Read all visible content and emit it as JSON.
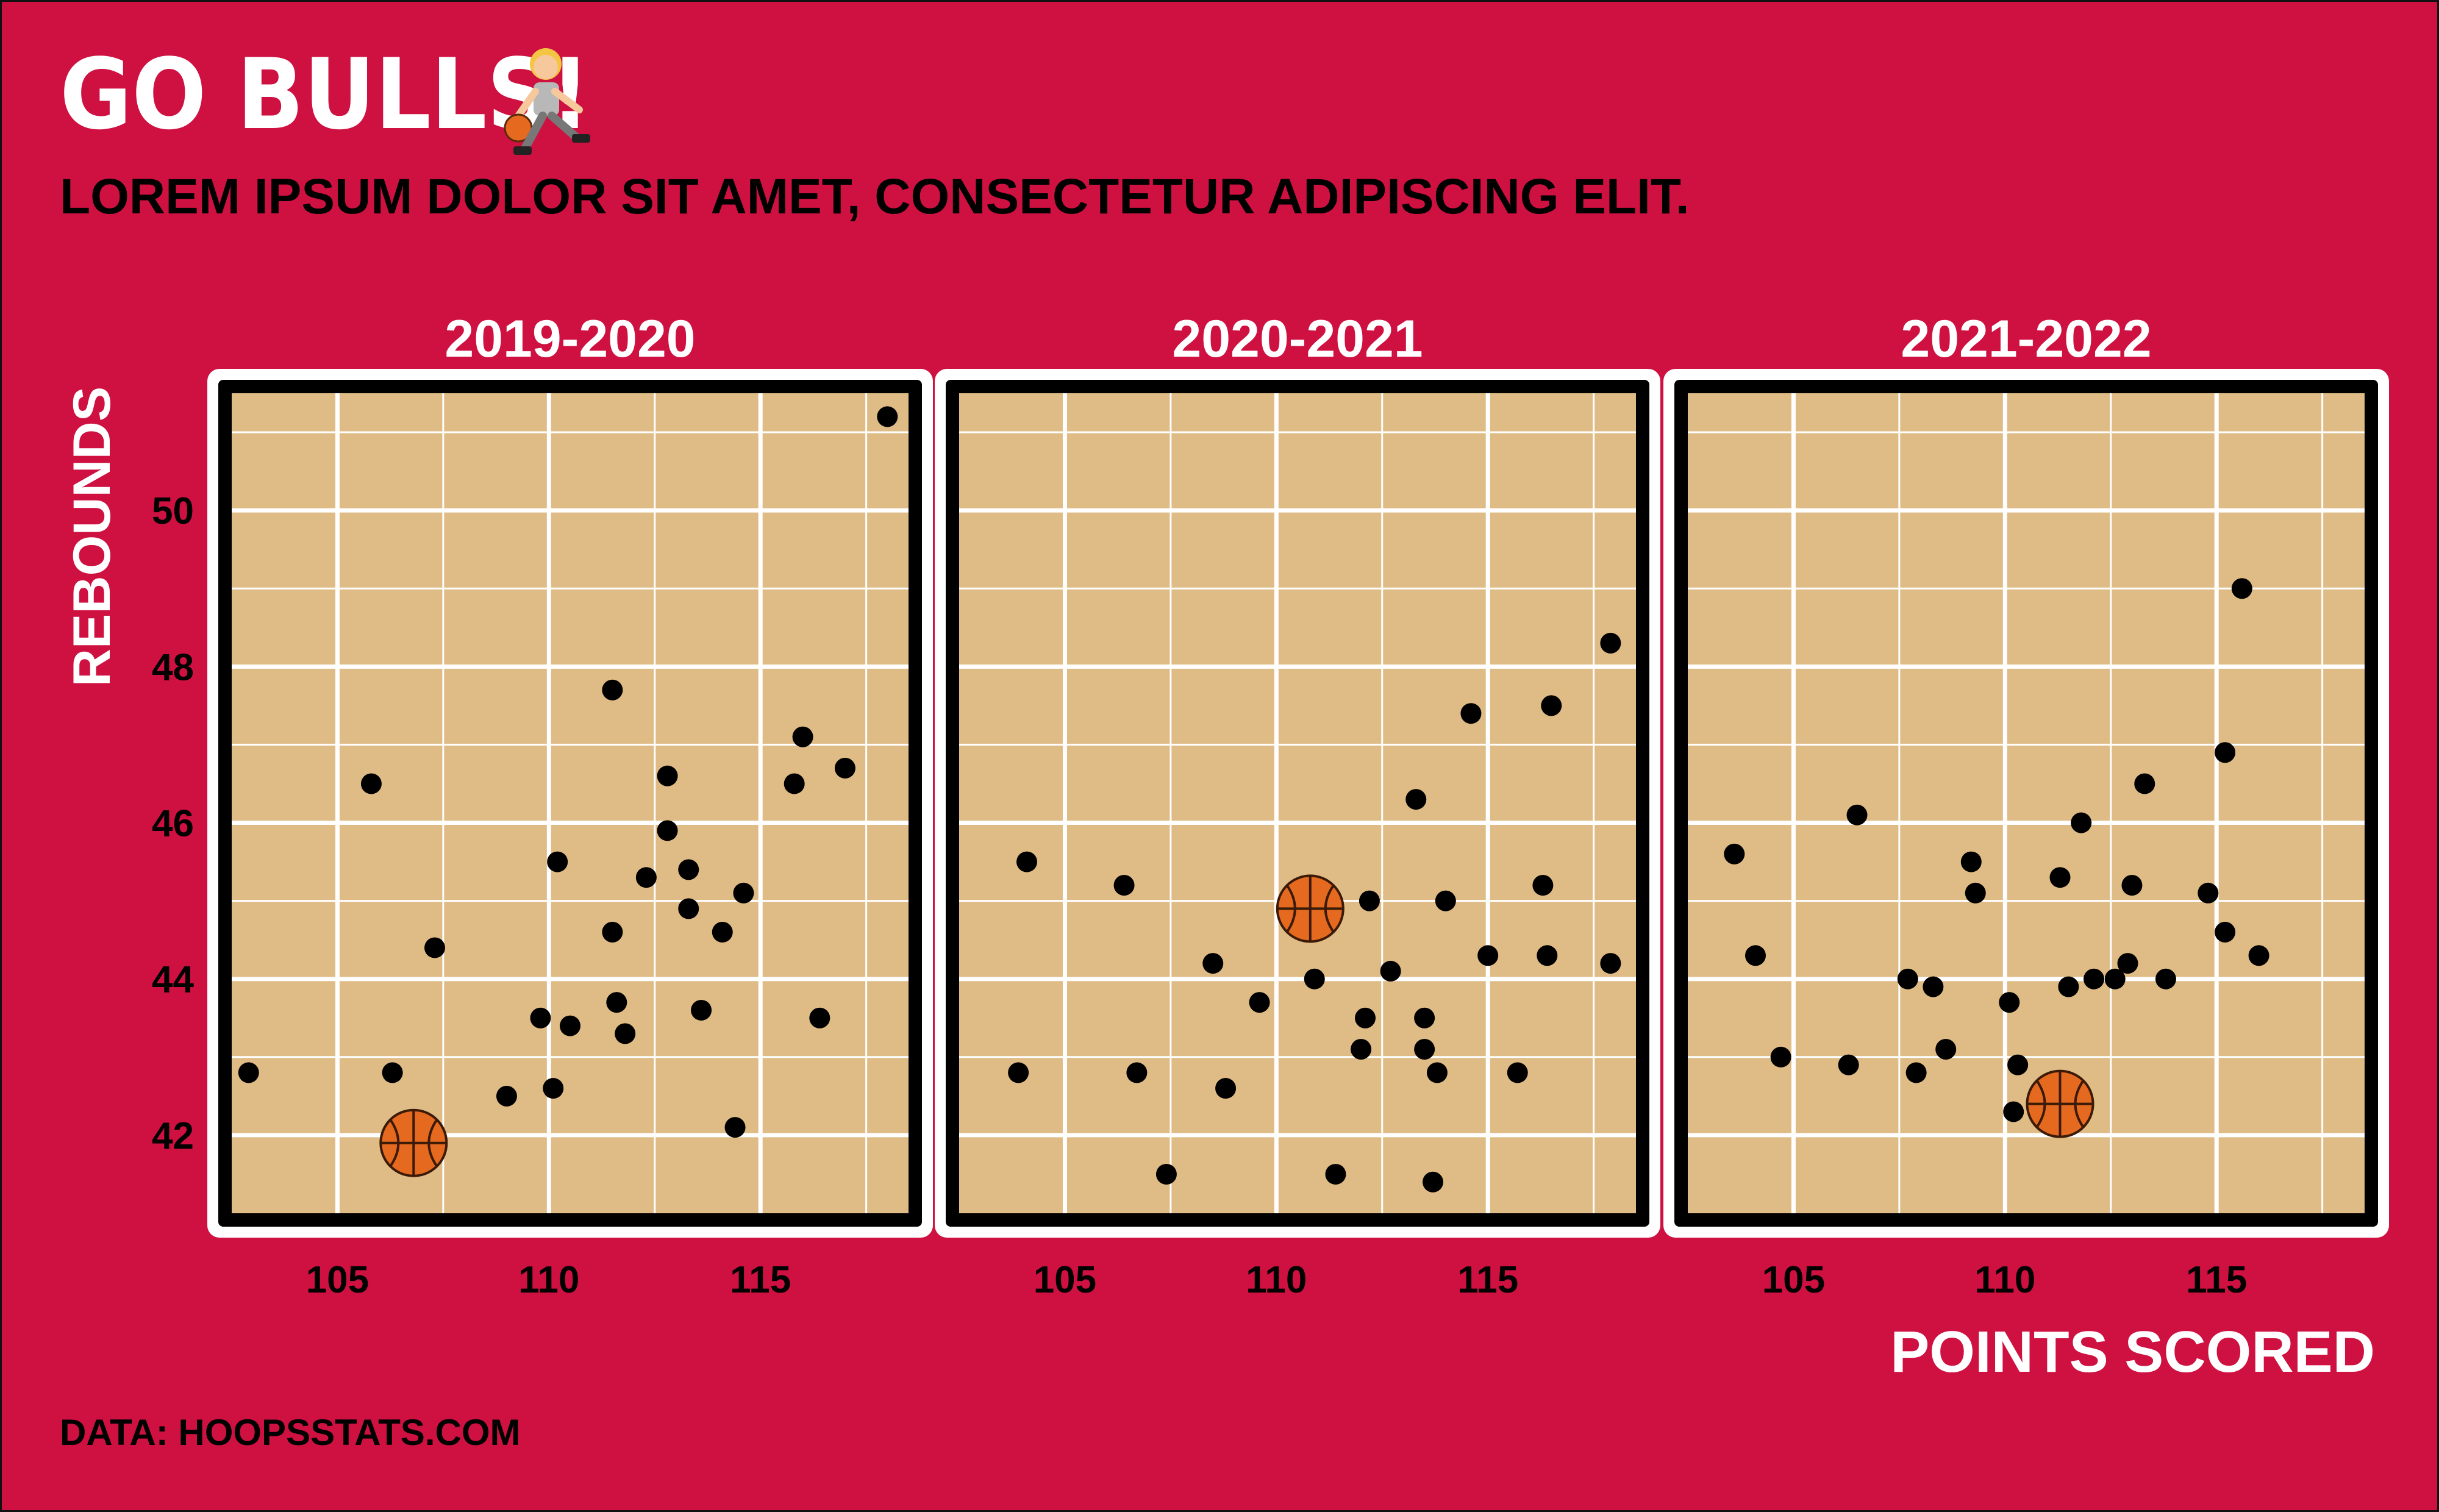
{
  "title": "GO BULLS!",
  "title_icon": "basketball-player-icon",
  "subtitle": "LOREM IPSUM DOLOR SIT AMET, CONSECTETUR ADIPISCING ELIT.",
  "caption": "DATA: HOOPSSTATS.COM",
  "colors": {
    "background": "#ce1141",
    "panel": "#dfbb85",
    "panel_border_outer": "#ffffff",
    "panel_border_inner": "#000000",
    "grid": "#ffffff",
    "point": "#000000",
    "ball": "#e56a1f"
  },
  "chart_data": {
    "type": "scatter",
    "facet_by": "season",
    "xlabel": "POINTS SCORED",
    "ylabel": "REBOUNDS",
    "xlim": [
      102.5,
      118.5
    ],
    "ylim": [
      41.0,
      51.5
    ],
    "x_ticks": [
      105,
      110,
      115
    ],
    "y_ticks": [
      42,
      44,
      46,
      48,
      50
    ],
    "grid": true,
    "panels": [
      {
        "season": "2019-2020",
        "points": [
          {
            "x": 102.9,
            "y": 42.8
          },
          {
            "x": 105.8,
            "y": 46.5
          },
          {
            "x": 106.3,
            "y": 42.8
          },
          {
            "x": 107.2,
            "y": 41.7
          },
          {
            "x": 107.3,
            "y": 44.4
          },
          {
            "x": 109.0,
            "y": 42.5
          },
          {
            "x": 109.8,
            "y": 43.5
          },
          {
            "x": 110.1,
            "y": 42.6
          },
          {
            "x": 110.2,
            "y": 45.5
          },
          {
            "x": 110.5,
            "y": 43.4
          },
          {
            "x": 111.5,
            "y": 47.7
          },
          {
            "x": 111.5,
            "y": 44.6
          },
          {
            "x": 111.6,
            "y": 43.7
          },
          {
            "x": 111.8,
            "y": 43.3
          },
          {
            "x": 112.3,
            "y": 45.3
          },
          {
            "x": 112.8,
            "y": 46.6
          },
          {
            "x": 112.8,
            "y": 45.9
          },
          {
            "x": 113.3,
            "y": 45.4
          },
          {
            "x": 113.3,
            "y": 44.9
          },
          {
            "x": 113.6,
            "y": 43.6
          },
          {
            "x": 114.1,
            "y": 44.6
          },
          {
            "x": 114.4,
            "y": 42.1
          },
          {
            "x": 114.6,
            "y": 45.1
          },
          {
            "x": 115.8,
            "y": 46.5
          },
          {
            "x": 116.0,
            "y": 47.1
          },
          {
            "x": 116.4,
            "y": 43.5
          },
          {
            "x": 117.0,
            "y": 46.7
          },
          {
            "x": 118.0,
            "y": 51.2
          }
        ],
        "highlight": {
          "x": 106.8,
          "y": 41.9
        }
      },
      {
        "season": "2020-2021",
        "points": [
          {
            "x": 103.9,
            "y": 42.8
          },
          {
            "x": 104.1,
            "y": 45.5
          },
          {
            "x": 106.4,
            "y": 45.2
          },
          {
            "x": 106.7,
            "y": 42.8
          },
          {
            "x": 107.4,
            "y": 41.5
          },
          {
            "x": 108.5,
            "y": 44.2
          },
          {
            "x": 108.8,
            "y": 42.6
          },
          {
            "x": 109.6,
            "y": 43.7
          },
          {
            "x": 110.9,
            "y": 44.0
          },
          {
            "x": 111.4,
            "y": 41.5
          },
          {
            "x": 112.0,
            "y": 43.1
          },
          {
            "x": 112.1,
            "y": 43.5
          },
          {
            "x": 112.2,
            "y": 45.0
          },
          {
            "x": 112.7,
            "y": 44.1
          },
          {
            "x": 113.3,
            "y": 46.3
          },
          {
            "x": 113.5,
            "y": 43.5
          },
          {
            "x": 113.5,
            "y": 43.1
          },
          {
            "x": 113.7,
            "y": 41.4
          },
          {
            "x": 113.8,
            "y": 42.8
          },
          {
            "x": 114.0,
            "y": 45.0
          },
          {
            "x": 114.6,
            "y": 47.4
          },
          {
            "x": 115.0,
            "y": 44.3
          },
          {
            "x": 115.7,
            "y": 42.8
          },
          {
            "x": 116.3,
            "y": 45.2
          },
          {
            "x": 116.4,
            "y": 44.3
          },
          {
            "x": 116.5,
            "y": 47.5
          },
          {
            "x": 117.9,
            "y": 48.3
          },
          {
            "x": 117.9,
            "y": 44.2
          }
        ],
        "highlight": {
          "x": 110.8,
          "y": 44.9
        }
      },
      {
        "season": "2021-2022",
        "points": [
          {
            "x": 103.6,
            "y": 45.6
          },
          {
            "x": 104.1,
            "y": 44.3
          },
          {
            "x": 104.7,
            "y": 43.0
          },
          {
            "x": 106.3,
            "y": 42.9
          },
          {
            "x": 106.5,
            "y": 46.1
          },
          {
            "x": 107.7,
            "y": 44.0
          },
          {
            "x": 107.9,
            "y": 42.8
          },
          {
            "x": 108.3,
            "y": 43.9
          },
          {
            "x": 108.6,
            "y": 43.1
          },
          {
            "x": 109.2,
            "y": 45.5
          },
          {
            "x": 109.3,
            "y": 45.1
          },
          {
            "x": 110.1,
            "y": 43.7
          },
          {
            "x": 110.2,
            "y": 42.3
          },
          {
            "x": 110.3,
            "y": 42.9
          },
          {
            "x": 111.3,
            "y": 45.3
          },
          {
            "x": 111.5,
            "y": 43.9
          },
          {
            "x": 111.8,
            "y": 46.0
          },
          {
            "x": 112.1,
            "y": 44.0
          },
          {
            "x": 112.6,
            "y": 44.0
          },
          {
            "x": 112.9,
            "y": 44.2
          },
          {
            "x": 113.0,
            "y": 45.2
          },
          {
            "x": 113.3,
            "y": 46.5
          },
          {
            "x": 113.8,
            "y": 44.0
          },
          {
            "x": 114.8,
            "y": 45.1
          },
          {
            "x": 115.2,
            "y": 46.9
          },
          {
            "x": 115.2,
            "y": 44.6
          },
          {
            "x": 115.6,
            "y": 49.0
          },
          {
            "x": 116.0,
            "y": 44.3
          }
        ],
        "highlight": {
          "x": 111.3,
          "y": 42.4
        }
      }
    ]
  }
}
